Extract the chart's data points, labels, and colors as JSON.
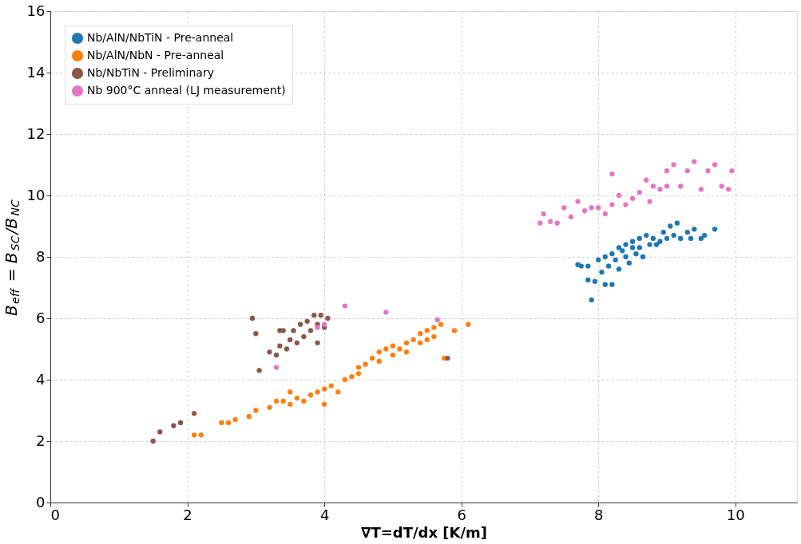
{
  "chart_data": {
    "type": "scatter",
    "xlabel": "∇T=dT/dx [K/m]",
    "ylabel": "B$_{eff}$ = B$_{SC}$/B$_{NC}$",
    "xlim": [
      0,
      10.9
    ],
    "xticks": [
      0,
      2,
      4,
      6,
      8,
      10
    ],
    "ylim": [
      0,
      16
    ],
    "yticks": [
      0,
      2,
      4,
      6,
      8,
      10,
      12,
      14,
      16
    ],
    "grid": true,
    "legend": "top left",
    "marker": "circle",
    "series": [
      {
        "name": "Nb/AlN/NbTiN - Pre-anneal",
        "color": "#1f77b4",
        "x": [
          7.7,
          7.75,
          7.85,
          7.85,
          7.9,
          7.95,
          8.0,
          8.05,
          8.1,
          8.1,
          8.15,
          8.2,
          8.2,
          8.25,
          8.3,
          8.3,
          8.35,
          8.4,
          8.4,
          8.45,
          8.5,
          8.5,
          8.55,
          8.6,
          8.6,
          8.65,
          8.7,
          8.75,
          8.8,
          8.85,
          8.9,
          8.95,
          9.0,
          9.05,
          9.1,
          9.15,
          9.2,
          9.3,
          9.35,
          9.4,
          9.5,
          9.55,
          9.7
        ],
        "values": [
          7.75,
          7.7,
          7.7,
          7.25,
          6.6,
          7.2,
          7.9,
          7.5,
          8.0,
          7.1,
          7.7,
          7.1,
          8.1,
          7.9,
          8.3,
          7.6,
          8.2,
          8.0,
          8.4,
          7.8,
          8.3,
          8.5,
          8.1,
          8.6,
          8.3,
          8.0,
          8.7,
          8.4,
          8.6,
          8.4,
          8.5,
          8.8,
          8.6,
          9.0,
          8.7,
          9.1,
          8.6,
          8.8,
          8.6,
          8.9,
          8.6,
          8.7,
          8.9
        ]
      },
      {
        "name": "Nb/AlN/NbN - Pre-anneal",
        "color": "#ff7f0e",
        "x": [
          2.1,
          2.2,
          2.5,
          2.6,
          2.7,
          2.9,
          3.0,
          3.2,
          3.3,
          3.4,
          3.5,
          3.6,
          3.7,
          3.8,
          3.9,
          4.0,
          4.1,
          4.2,
          4.3,
          4.4,
          4.5,
          4.5,
          4.6,
          4.7,
          4.8,
          4.8,
          4.9,
          5.0,
          5.0,
          5.1,
          5.2,
          5.2,
          5.3,
          5.4,
          5.4,
          5.5,
          5.5,
          5.6,
          5.6,
          5.7,
          5.75,
          5.9,
          6.1,
          3.5,
          4.0
        ],
        "values": [
          2.2,
          2.2,
          2.6,
          2.6,
          2.7,
          2.8,
          3.0,
          3.1,
          3.3,
          3.3,
          3.2,
          3.4,
          3.3,
          3.5,
          3.6,
          3.7,
          3.8,
          3.6,
          4.0,
          4.1,
          4.2,
          4.4,
          4.5,
          4.7,
          4.6,
          4.9,
          5.0,
          4.8,
          5.1,
          5.0,
          5.2,
          4.9,
          5.3,
          5.5,
          5.2,
          5.6,
          5.3,
          5.7,
          5.4,
          5.8,
          4.7,
          5.6,
          5.8,
          3.6,
          3.2
        ]
      },
      {
        "name": "Nb/NbTiN - Preliminary",
        "color": "#8c564b",
        "x": [
          1.5,
          1.6,
          1.8,
          1.9,
          2.1,
          2.95,
          3.0,
          3.05,
          3.2,
          3.3,
          3.35,
          3.4,
          3.45,
          3.5,
          3.55,
          3.6,
          3.65,
          3.7,
          3.75,
          3.8,
          3.85,
          3.9,
          3.95,
          4.0,
          4.05,
          3.35,
          3.9,
          5.8
        ],
        "values": [
          2.0,
          2.3,
          2.5,
          2.6,
          2.9,
          6.0,
          5.5,
          4.3,
          4.9,
          4.8,
          5.1,
          5.6,
          5.0,
          5.3,
          5.6,
          5.2,
          5.8,
          5.4,
          5.9,
          5.6,
          6.1,
          5.8,
          6.1,
          5.7,
          6.0,
          5.6,
          5.2,
          4.7
        ]
      },
      {
        "name": "Nb 900°C anneal (LJ measurement)",
        "color": "#e377c2",
        "x": [
          7.15,
          7.2,
          7.3,
          7.4,
          7.5,
          7.6,
          7.7,
          7.8,
          7.9,
          8.0,
          8.1,
          8.2,
          8.3,
          8.4,
          8.5,
          8.6,
          8.7,
          8.75,
          8.8,
          8.9,
          9.0,
          9.0,
          9.1,
          9.2,
          9.3,
          9.4,
          9.5,
          9.6,
          9.7,
          9.8,
          9.95,
          9.9,
          8.2,
          3.3,
          3.9,
          4.0,
          4.3,
          4.9,
          5.65
        ],
        "values": [
          9.1,
          9.4,
          9.15,
          9.1,
          9.6,
          9.3,
          9.8,
          9.5,
          9.6,
          9.6,
          9.4,
          9.7,
          10.0,
          9.7,
          9.9,
          10.1,
          10.5,
          9.8,
          10.3,
          10.2,
          10.3,
          10.8,
          11.0,
          10.3,
          10.8,
          11.1,
          10.2,
          10.8,
          11.0,
          10.3,
          10.8,
          10.2,
          10.7,
          4.4,
          5.7,
          5.8,
          6.4,
          6.2,
          5.95
        ]
      }
    ]
  }
}
